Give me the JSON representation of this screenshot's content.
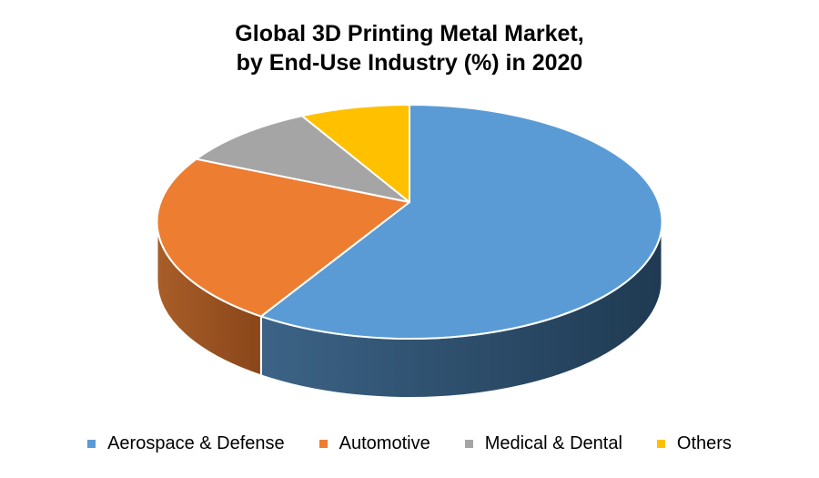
{
  "chart_data": {
    "type": "pie",
    "style": "3d",
    "title": "Global 3D Printing Metal Market, by End-Use Industry (%) in 2020",
    "title_lines": [
      "Global 3D Printing Metal Market,",
      "by End-Use Industry (%) in 2020"
    ],
    "categories": [
      "Aerospace & Defense",
      "Automotive",
      "Medical & Dental",
      "Others"
    ],
    "values": [
      60,
      24,
      9,
      7
    ],
    "unit": "%",
    "colors": [
      "#5B9BD5",
      "#ED7D31",
      "#A5A5A5",
      "#FFC000"
    ],
    "side_colors": [
      [
        "#3c6386",
        "#1f3a52"
      ],
      [
        "#a85e28",
        "#8a461a"
      ],
      [
        "#7f7f7f",
        "#696969"
      ],
      [
        "#bf9000",
        "#9c7500"
      ]
    ],
    "separator_color": "#ffffff",
    "background": "#ffffff",
    "text_color": "#000000",
    "start_angle_deg": 0,
    "direction": "clockwise",
    "legend_position": "bottom",
    "data_labels_shown": false
  }
}
